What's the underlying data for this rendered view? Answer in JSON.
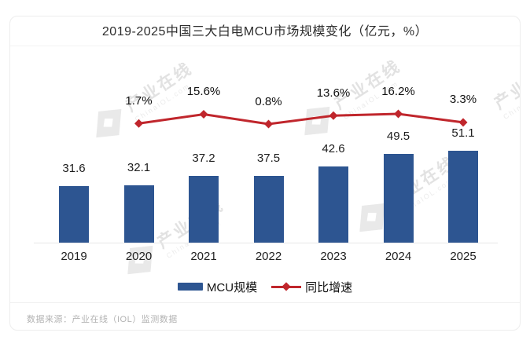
{
  "card": {
    "title": "2019-2025中国三大白电MCU市场规模变化（亿元，%）",
    "footer": "数据来源：产业在线（IOL）监测数据"
  },
  "watermark": {
    "text": "产业在线",
    "subtext": "ChinaIOL.com"
  },
  "colors": {
    "bar": "#2d5591",
    "line": "#c0262c"
  },
  "chart_data": {
    "type": "bar",
    "title": "2019-2025中国三大白电MCU市场规模变化（亿元，%）",
    "categories": [
      "2019",
      "2020",
      "2021",
      "2022",
      "2023",
      "2024",
      "2025"
    ],
    "series": [
      {
        "name": "MCU规模",
        "type": "bar",
        "unit": "亿元",
        "values": [
          31.6,
          32.1,
          37.2,
          37.5,
          42.6,
          49.5,
          51.1
        ]
      },
      {
        "name": "同比增速",
        "type": "line",
        "unit": "%",
        "values": [
          null,
          1.7,
          15.6,
          0.8,
          13.6,
          16.2,
          3.3
        ]
      }
    ],
    "xlabel": "",
    "ylabel": "",
    "grid": false,
    "legend_position": "bottom",
    "source": "数据来源：产业在线（IOL）监测数据"
  }
}
